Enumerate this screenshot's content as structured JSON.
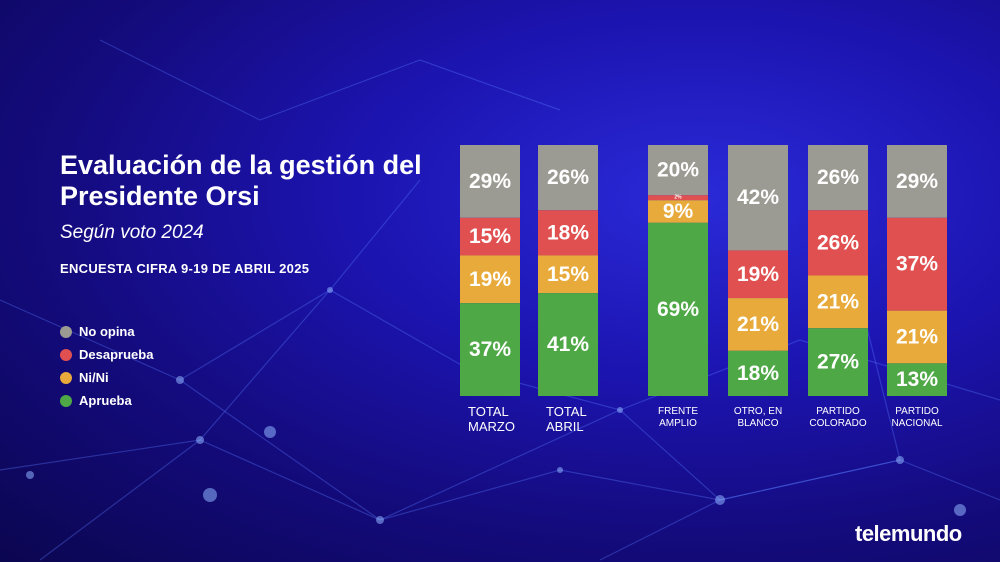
{
  "header": {
    "title": "Evaluación de la gestión del Presidente Orsi",
    "subtitle": "Según voto 2024",
    "source": "ENCUESTA CIFRA 9-19 DE ABRIL 2025"
  },
  "colors": {
    "no_opina": "#9b9b93",
    "desaprueba": "#e05050",
    "ni_ni": "#e8aa3a",
    "aprueba": "#4ea845"
  },
  "legend": [
    {
      "label": "No opina",
      "color": "#9b9b93"
    },
    {
      "label": "Desaprueba",
      "color": "#e05050"
    },
    {
      "label": "Ni/Ni",
      "color": "#e8aa3a"
    },
    {
      "label": "Aprueba",
      "color": "#4ea845"
    }
  ],
  "chart_data": {
    "type": "bar",
    "stacked": true,
    "normalized": true,
    "categories": [
      "TOTAL MARZO",
      "TOTAL ABRIL",
      "FRENTE AMPLIO",
      "OTRO, EN BLANCO",
      "PARTIDO COLORADO",
      "PARTIDO NACIONAL"
    ],
    "category_lines": [
      [
        "TOTAL",
        "MARZO"
      ],
      [
        "TOTAL",
        "ABRIL"
      ],
      [
        "FRENTE",
        "AMPLIO"
      ],
      [
        "OTRO, EN",
        "BLANCO"
      ],
      [
        "PARTIDO",
        "COLORADO"
      ],
      [
        "PARTIDO",
        "NACIONAL"
      ]
    ],
    "series": [
      {
        "name": "Aprueba",
        "color": "#4ea845",
        "values": [
          37,
          41,
          69,
          18,
          27,
          13
        ]
      },
      {
        "name": "Ni/Ni",
        "color": "#e8aa3a",
        "values": [
          19,
          15,
          9,
          21,
          21,
          21
        ]
      },
      {
        "name": "Desaprueba",
        "color": "#e05050",
        "values": [
          15,
          18,
          2,
          19,
          26,
          37
        ]
      },
      {
        "name": "No opina",
        "color": "#9b9b93",
        "values": [
          29,
          26,
          20,
          42,
          26,
          29
        ]
      }
    ],
    "value_suffix": "%",
    "legend_position": "left",
    "grid": false
  },
  "brand": {
    "logo_text": "telemundo"
  }
}
